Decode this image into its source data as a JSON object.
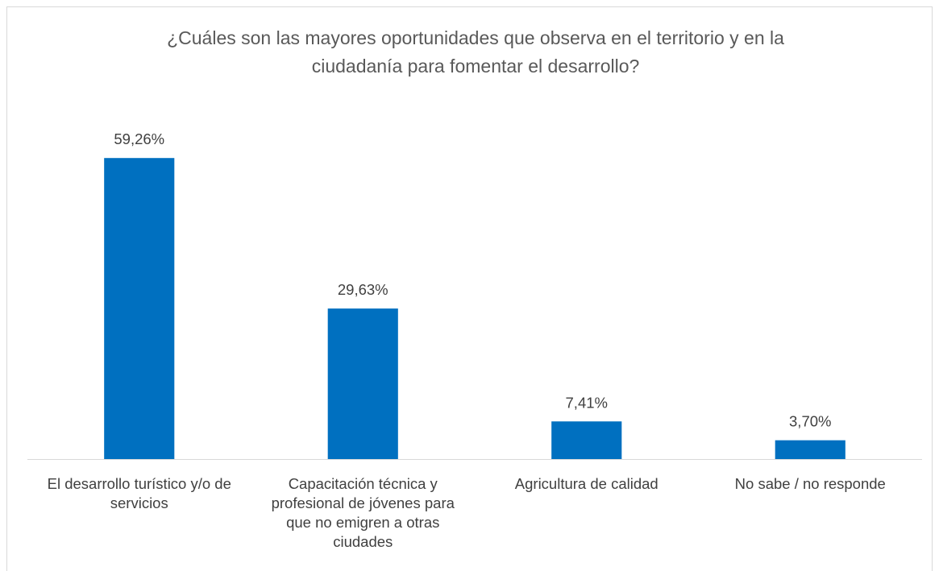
{
  "chart_data": {
    "type": "bar",
    "title": "¿Cuáles son las mayores oportunidades que observa en el territorio y en la ciudadanía para fomentar el desarrollo?",
    "categories": [
      "El desarrollo turístico y/o de servicios",
      "Capacitación técnica y profesional de jóvenes para que no emigren a otras ciudades",
      "Agricultura de calidad",
      "No sabe / no responde"
    ],
    "values": [
      59.26,
      29.63,
      7.41,
      3.7
    ],
    "value_labels": [
      "59,26%",
      "29,63%",
      "7,41%",
      "3,70%"
    ],
    "color": "#0070c0",
    "ylim": [
      0,
      65
    ]
  }
}
